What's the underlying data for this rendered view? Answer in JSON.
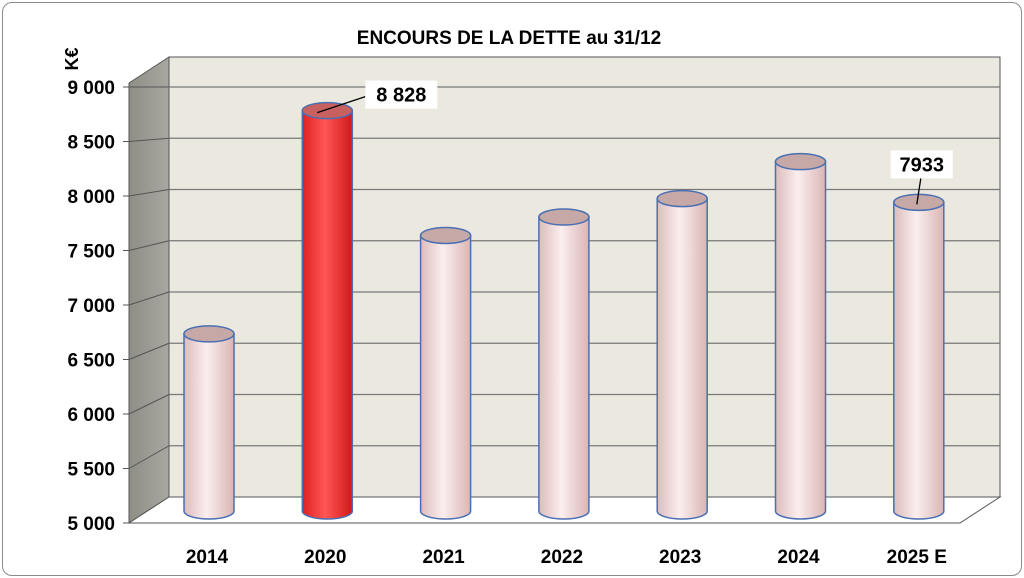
{
  "chart_data": {
    "type": "bar",
    "style": "3d-cylinder",
    "title": "ENCOURS DE LA DETTE au 31/12",
    "ylabel": "K€",
    "xlabel": "",
    "categories": [
      "2014",
      "2020",
      "2021",
      "2022",
      "2023",
      "2024",
      "2025 E"
    ],
    "values": [
      6650,
      8828,
      7610,
      7790,
      7970,
      8330,
      7933
    ],
    "ylim": [
      5000,
      9000
    ],
    "yticks": [
      "5 000",
      "5 500",
      "6 000",
      "6 500",
      "7 000",
      "7 500",
      "8 000",
      "8 500",
      "9 000"
    ],
    "data_labels": [
      {
        "category": "2020",
        "text": "8 828"
      },
      {
        "category": "2025 E",
        "text": "7933"
      }
    ],
    "highlight_category": "2020",
    "grid": true,
    "colors": {
      "bar": "#f6dede",
      "bar_highlight": "#ff3b3b",
      "bar_outline": "#4a6fb3",
      "wall": "#ebe9df",
      "side_wall": "#9a9a92",
      "grid": "#777777"
    }
  }
}
